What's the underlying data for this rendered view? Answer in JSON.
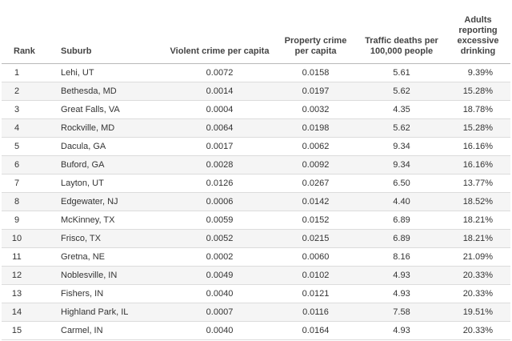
{
  "table": {
    "headers": {
      "rank": "Rank",
      "suburb": "Suburb",
      "violent": "Violent crime per capita",
      "property": "Property crime per capita",
      "traffic": "Traffic deaths per 100,000 people",
      "adults": "Adults reporting excessive drinking"
    },
    "rows": [
      {
        "rank": "1",
        "suburb": "Lehi, UT",
        "violent": "0.0072",
        "property": "0.0158",
        "traffic": "5.61",
        "adults": "9.39%"
      },
      {
        "rank": "2",
        "suburb": "Bethesda, MD",
        "violent": "0.0014",
        "property": "0.0197",
        "traffic": "5.62",
        "adults": "15.28%"
      },
      {
        "rank": "3",
        "suburb": "Great Falls, VA",
        "violent": "0.0004",
        "property": "0.0032",
        "traffic": "4.35",
        "adults": "18.78%"
      },
      {
        "rank": "4",
        "suburb": "Rockville, MD",
        "violent": "0.0064",
        "property": "0.0198",
        "traffic": "5.62",
        "adults": "15.28%"
      },
      {
        "rank": "5",
        "suburb": "Dacula, GA",
        "violent": "0.0017",
        "property": "0.0062",
        "traffic": "9.34",
        "adults": "16.16%"
      },
      {
        "rank": "6",
        "suburb": "Buford, GA",
        "violent": "0.0028",
        "property": "0.0092",
        "traffic": "9.34",
        "adults": "16.16%"
      },
      {
        "rank": "7",
        "suburb": "Layton, UT",
        "violent": "0.0126",
        "property": "0.0267",
        "traffic": "6.50",
        "adults": "13.77%"
      },
      {
        "rank": "8",
        "suburb": "Edgewater, NJ",
        "violent": "0.0006",
        "property": "0.0142",
        "traffic": "4.40",
        "adults": "18.52%"
      },
      {
        "rank": "9",
        "suburb": "McKinney, TX",
        "violent": "0.0059",
        "property": "0.0152",
        "traffic": "6.89",
        "adults": "18.21%"
      },
      {
        "rank": "10",
        "suburb": "Frisco, TX",
        "violent": "0.0052",
        "property": "0.0215",
        "traffic": "6.89",
        "adults": "18.21%"
      },
      {
        "rank": "11",
        "suburb": "Gretna, NE",
        "violent": "0.0002",
        "property": "0.0060",
        "traffic": "8.16",
        "adults": "21.09%"
      },
      {
        "rank": "12",
        "suburb": "Noblesville, IN",
        "violent": "0.0049",
        "property": "0.0102",
        "traffic": "4.93",
        "adults": "20.33%"
      },
      {
        "rank": "13",
        "suburb": "Fishers, IN",
        "violent": "0.0040",
        "property": "0.0121",
        "traffic": "4.93",
        "adults": "20.33%"
      },
      {
        "rank": "14",
        "suburb": "Highland Park, IL",
        "violent": "0.0007",
        "property": "0.0116",
        "traffic": "7.58",
        "adults": "19.51%"
      },
      {
        "rank": "15",
        "suburb": "Carmel, IN",
        "violent": "0.0040",
        "property": "0.0164",
        "traffic": "4.93",
        "adults": "20.33%"
      }
    ]
  }
}
